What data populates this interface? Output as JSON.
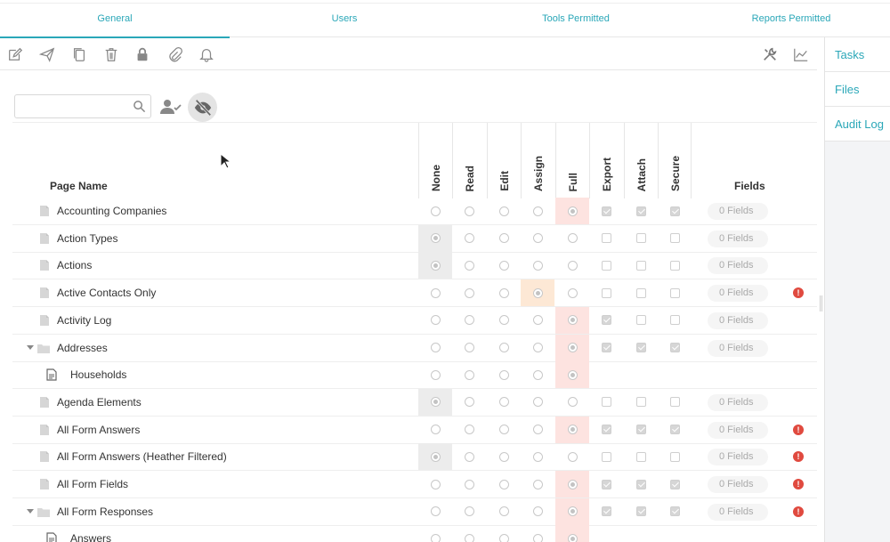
{
  "tabs": [
    {
      "label": "General",
      "active": true
    },
    {
      "label": "Users",
      "active": false
    },
    {
      "label": "Tools Permitted",
      "active": false
    },
    {
      "label": "Reports Permitted",
      "active": false
    }
  ],
  "side_panel": {
    "items": [
      "Tasks",
      "Files",
      "Audit Log"
    ]
  },
  "toolbar": {
    "left_icons": [
      "edit-icon",
      "send-icon",
      "copy-icon",
      "trash-icon",
      "lock-icon",
      "paperclip-icon",
      "bell-icon"
    ],
    "right_icons": [
      "tools-icon",
      "chart-icon"
    ]
  },
  "search": {
    "value": "",
    "placeholder": ""
  },
  "grid": {
    "page_name_header": "Page Name",
    "permission_headers": [
      "None",
      "Read",
      "Edit",
      "Assign",
      "Full",
      "Export",
      "Attach",
      "Secure"
    ],
    "fields_header": "Fields",
    "rows": [
      {
        "name": "Accounting Companies",
        "type": "page",
        "level": 0,
        "perm": "Full",
        "checks": [
          true,
          true,
          true
        ],
        "fields": "0 Fields",
        "warning": false
      },
      {
        "name": "Action Types",
        "type": "page",
        "level": 0,
        "perm": "None",
        "checks": [
          false,
          false,
          false
        ],
        "fields": "0 Fields",
        "warning": false
      },
      {
        "name": "Actions",
        "type": "page",
        "level": 0,
        "perm": "None",
        "checks": [
          false,
          false,
          false
        ],
        "fields": "0 Fields",
        "warning": false
      },
      {
        "name": "Active Contacts Only",
        "type": "page",
        "level": 0,
        "perm": "Assign",
        "checks": [
          false,
          false,
          false
        ],
        "fields": "0 Fields",
        "warning": true
      },
      {
        "name": "Activity Log",
        "type": "page",
        "level": 0,
        "perm": "Full",
        "checks": [
          true,
          false,
          false
        ],
        "fields": "0 Fields",
        "warning": false
      },
      {
        "name": "Addresses",
        "type": "folder",
        "level": 0,
        "perm": "Full",
        "checks": [
          true,
          true,
          true
        ],
        "fields": "0 Fields",
        "warning": false
      },
      {
        "name": "Households",
        "type": "subpage",
        "level": 1,
        "perm": "Full",
        "checks": null,
        "fields": "",
        "warning": false
      },
      {
        "name": "Agenda Elements",
        "type": "page",
        "level": 0,
        "perm": "None",
        "checks": [
          false,
          false,
          false
        ],
        "fields": "0 Fields",
        "warning": false
      },
      {
        "name": "All Form Answers",
        "type": "page",
        "level": 0,
        "perm": "Full",
        "checks": [
          true,
          true,
          true
        ],
        "fields": "0 Fields",
        "warning": true
      },
      {
        "name": "All Form Answers (Heather Filtered)",
        "type": "page",
        "level": 0,
        "perm": "None",
        "checks": [
          false,
          false,
          false
        ],
        "fields": "0 Fields",
        "warning": true
      },
      {
        "name": "All Form Fields",
        "type": "page",
        "level": 0,
        "perm": "Full",
        "checks": [
          true,
          true,
          true
        ],
        "fields": "0 Fields",
        "warning": true
      },
      {
        "name": "All Form Responses",
        "type": "folder",
        "level": 0,
        "perm": "Full",
        "checks": [
          true,
          true,
          true
        ],
        "fields": "0 Fields",
        "warning": true
      },
      {
        "name": "Answers",
        "type": "subpage",
        "level": 1,
        "perm": "Full",
        "checks": null,
        "fields": "",
        "warning": false
      }
    ]
  },
  "warning_glyph": "!",
  "colors": {
    "accent": "#2aa7b8",
    "full_highlight": "#fde3e0",
    "none_highlight": "#ececec",
    "assign_highlight": "#fde8d5",
    "warning": "#e04a3f"
  }
}
